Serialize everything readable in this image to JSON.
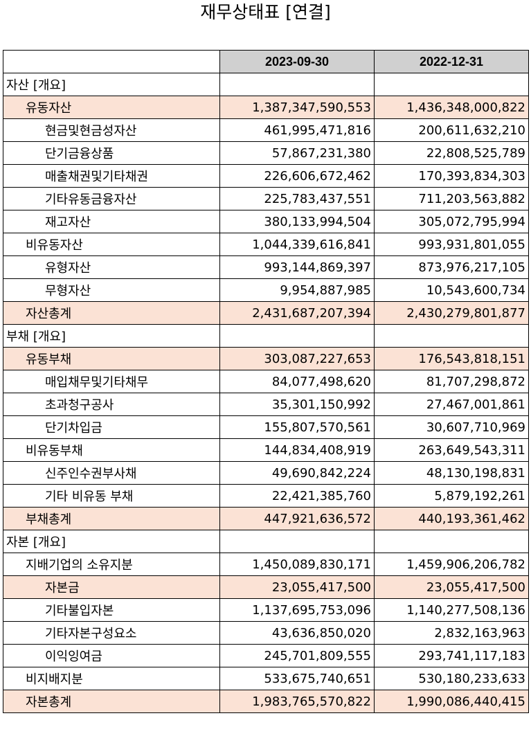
{
  "title": "재무상태표 [연결]",
  "columns": [
    "",
    "2023-09-30",
    "2022-12-31"
  ],
  "rows": [
    {
      "label": "자산 [개요]",
      "level": 0,
      "highlight": false,
      "v1": "",
      "v2": ""
    },
    {
      "label": "유동자산",
      "level": 1,
      "highlight": true,
      "v1": "1,387,347,590,553",
      "v2": "1,436,348,000,822"
    },
    {
      "label": "현금및현금성자산",
      "level": 2,
      "highlight": false,
      "v1": "461,995,471,816",
      "v2": "200,611,632,210"
    },
    {
      "label": "단기금융상품",
      "level": 2,
      "highlight": false,
      "v1": "57,867,231,380",
      "v2": "22,808,525,789"
    },
    {
      "label": "매출채권및기타채권",
      "level": 2,
      "highlight": false,
      "v1": "226,606,672,462",
      "v2": "170,393,834,303"
    },
    {
      "label": "기타유동금융자산",
      "level": 2,
      "highlight": false,
      "v1": "225,783,437,551",
      "v2": "711,203,563,882"
    },
    {
      "label": "재고자산",
      "level": 2,
      "highlight": false,
      "v1": "380,133,994,504",
      "v2": "305,072,795,994"
    },
    {
      "label": "비유동자산",
      "level": 1,
      "highlight": false,
      "v1": "1,044,339,616,841",
      "v2": "993,931,801,055"
    },
    {
      "label": "유형자산",
      "level": 2,
      "highlight": false,
      "v1": "993,144,869,397",
      "v2": "873,976,217,105"
    },
    {
      "label": "무형자산",
      "level": 2,
      "highlight": false,
      "v1": "9,954,887,985",
      "v2": "10,543,600,734"
    },
    {
      "label": "자산총계",
      "level": 1,
      "highlight": true,
      "v1": "2,431,687,207,394",
      "v2": "2,430,279,801,877"
    },
    {
      "label": "부채 [개요]",
      "level": 0,
      "highlight": false,
      "v1": "",
      "v2": ""
    },
    {
      "label": "유동부채",
      "level": 1,
      "highlight": true,
      "v1": "303,087,227,653",
      "v2": "176,543,818,151"
    },
    {
      "label": "매입채무및기타채무",
      "level": 2,
      "highlight": false,
      "v1": "84,077,498,620",
      "v2": "81,707,298,872"
    },
    {
      "label": "초과청구공사",
      "level": 2,
      "highlight": false,
      "v1": "35,301,150,992",
      "v2": "27,467,001,861"
    },
    {
      "label": "단기차입금",
      "level": 2,
      "highlight": false,
      "v1": "155,807,570,561",
      "v2": "30,607,710,969"
    },
    {
      "label": "비유동부채",
      "level": 1,
      "highlight": false,
      "v1": "144,834,408,919",
      "v2": "263,649,543,311"
    },
    {
      "label": "신주인수권부사채",
      "level": 2,
      "highlight": false,
      "v1": "49,690,842,224",
      "v2": "48,130,198,831"
    },
    {
      "label": "기타 비유동 부채",
      "level": 2,
      "highlight": false,
      "v1": "22,421,385,760",
      "v2": "5,879,192,261"
    },
    {
      "label": "부채총계",
      "level": 1,
      "highlight": true,
      "v1": "447,921,636,572",
      "v2": "440,193,361,462"
    },
    {
      "label": "자본 [개요]",
      "level": 0,
      "highlight": false,
      "v1": "",
      "v2": ""
    },
    {
      "label": "지배기업의 소유지분",
      "level": 1,
      "highlight": false,
      "v1": "1,450,089,830,171",
      "v2": "1,459,906,206,782"
    },
    {
      "label": "자본금",
      "level": 2,
      "highlight": true,
      "v1": "23,055,417,500",
      "v2": "23,055,417,500"
    },
    {
      "label": "기타불입자본",
      "level": 2,
      "highlight": false,
      "v1": "1,137,695,753,096",
      "v2": "1,140,277,508,136"
    },
    {
      "label": "기타자본구성요소",
      "level": 2,
      "highlight": false,
      "v1": "43,636,850,020",
      "v2": "2,832,163,963"
    },
    {
      "label": "이익잉여금",
      "level": 2,
      "highlight": false,
      "v1": "245,701,809,555",
      "v2": "293,741,117,183"
    },
    {
      "label": "비지배지분",
      "level": 1,
      "highlight": false,
      "v1": "533,675,740,651",
      "v2": "530,180,233,633"
    },
    {
      "label": "자본총계",
      "level": 1,
      "highlight": true,
      "v1": "1,983,765,570,822",
      "v2": "1,990,086,440,415"
    }
  ],
  "colors": {
    "header_bg": "#d0d0d0",
    "highlight_bg": "#fbe2d5"
  }
}
